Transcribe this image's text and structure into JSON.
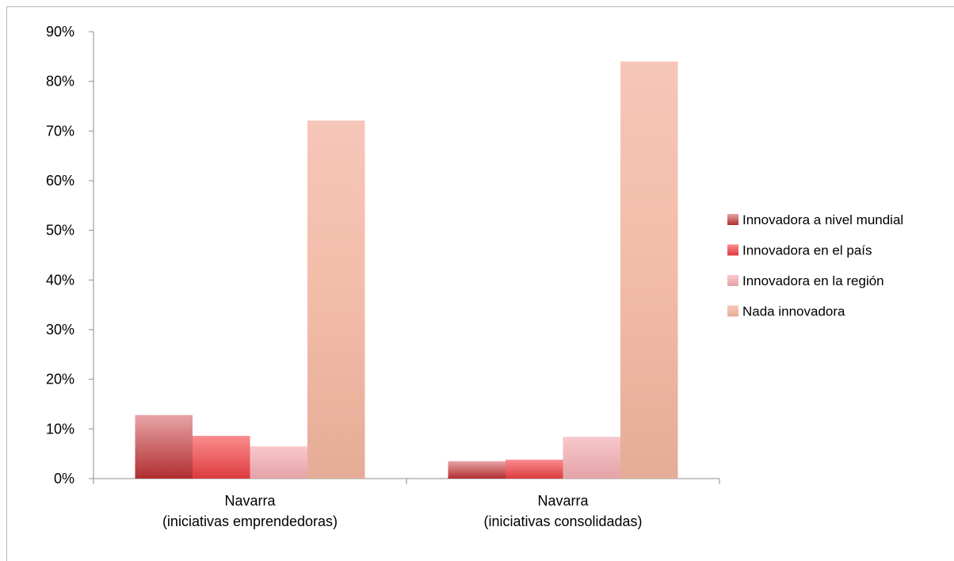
{
  "chart_data": {
    "type": "bar",
    "title": "",
    "xlabel": "",
    "ylabel": "",
    "ylim": [
      0,
      90
    ],
    "y_ticks": [
      "0%",
      "10%",
      "20%",
      "30%",
      "40%",
      "50%",
      "60%",
      "70%",
      "80%",
      "90%"
    ],
    "y_tick_values": [
      0,
      10,
      20,
      30,
      40,
      50,
      60,
      70,
      80,
      90
    ],
    "categories": [
      [
        "Navarra",
        "(iniciativas emprendedoras)"
      ],
      [
        "Navarra",
        "(iniciativas consolidadas)"
      ]
    ],
    "series": [
      {
        "name": "Innovadora a nivel mundial",
        "values": [
          12.8,
          3.5
        ],
        "color": "#c0504d"
      },
      {
        "name": "Innovadora en el país",
        "values": [
          8.6,
          3.8
        ],
        "color": "#e8585a"
      },
      {
        "name": "Innovadora en la región",
        "values": [
          6.5,
          8.4
        ],
        "color": "#eeb0b4"
      },
      {
        "name": "Nada innovadora",
        "values": [
          72.1,
          84.0
        ],
        "color": "#f6c4b0"
      }
    ],
    "grid": false,
    "legend_position": "right"
  }
}
